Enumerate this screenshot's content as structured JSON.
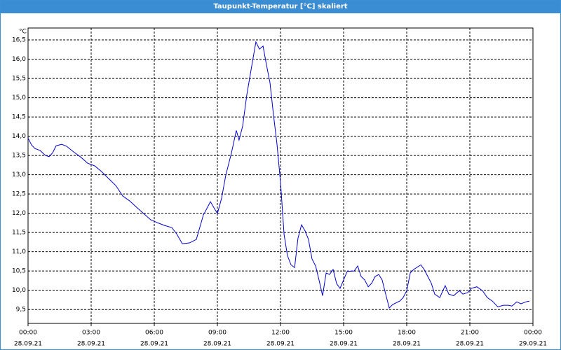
{
  "chart_data": {
    "type": "line",
    "title": "Taupunkt-Temperatur [°C] skaliert",
    "y_unit": "°C",
    "x": [
      0,
      0.17,
      0.33,
      0.57,
      0.83,
      1.0,
      1.17,
      1.33,
      1.6,
      1.83,
      2.17,
      2.5,
      2.83,
      3.17,
      3.5,
      3.83,
      4.17,
      4.5,
      4.83,
      5.17,
      5.5,
      5.83,
      6.17,
      6.5,
      6.83,
      7.07,
      7.33,
      7.67,
      8.0,
      8.33,
      8.67,
      9.0,
      9.2,
      9.4,
      9.67,
      9.9,
      10.03,
      10.2,
      10.4,
      10.6,
      10.83,
      11.0,
      11.17,
      11.33,
      11.5,
      11.67,
      11.83,
      12.0,
      12.17,
      12.33,
      12.5,
      12.67,
      12.83,
      13.0,
      13.17,
      13.33,
      13.5,
      13.67,
      13.83,
      14.0,
      14.17,
      14.33,
      14.5,
      14.67,
      14.83,
      15.0,
      15.17,
      15.5,
      15.67,
      15.83,
      16.0,
      16.17,
      16.33,
      16.5,
      16.67,
      16.83,
      17.0,
      17.17,
      17.33,
      17.67,
      17.83,
      18.0,
      18.17,
      18.33,
      18.67,
      18.83,
      19.0,
      19.17,
      19.33,
      19.57,
      19.83,
      20.0,
      20.23,
      20.5,
      20.67,
      20.9,
      21.07,
      21.33,
      21.6,
      21.83,
      22.07,
      22.33,
      22.6,
      22.83,
      23.0,
      23.23,
      23.43,
      23.67,
      23.83
    ],
    "series": [
      {
        "color": "#0000cc",
        "values": [
          13.95,
          13.77,
          13.68,
          13.63,
          13.5,
          13.47,
          13.57,
          13.75,
          13.79,
          13.74,
          13.59,
          13.46,
          13.3,
          13.23,
          13.08,
          12.9,
          12.72,
          12.45,
          12.32,
          12.15,
          11.99,
          11.83,
          11.75,
          11.68,
          11.63,
          11.46,
          11.21,
          11.23,
          11.32,
          11.95,
          12.3,
          11.99,
          12.39,
          12.99,
          13.57,
          14.15,
          13.9,
          14.26,
          15.08,
          15.72,
          16.45,
          16.26,
          16.34,
          15.86,
          15.39,
          14.54,
          13.81,
          12.81,
          11.45,
          10.9,
          10.66,
          10.59,
          11.35,
          11.7,
          11.54,
          11.32,
          10.81,
          10.63,
          10.27,
          9.86,
          10.45,
          10.41,
          10.54,
          10.17,
          10.05,
          10.27,
          10.49,
          10.5,
          10.63,
          10.36,
          10.27,
          10.09,
          10.18,
          10.36,
          10.41,
          10.27,
          9.9,
          9.54,
          9.63,
          9.72,
          9.81,
          9.99,
          10.45,
          10.54,
          10.66,
          10.54,
          10.36,
          10.18,
          9.9,
          9.81,
          10.12,
          9.9,
          9.86,
          9.99,
          9.9,
          9.94,
          10.05,
          10.09,
          9.99,
          9.81,
          9.72,
          9.57,
          9.61,
          9.61,
          9.59,
          9.7,
          9.65,
          9.7,
          9.72
        ]
      }
    ],
    "xlim": [
      0,
      24
    ],
    "xticks": [
      {
        "value": 0,
        "label": "00:00"
      },
      {
        "value": 3,
        "label": "03:00"
      },
      {
        "value": 6,
        "label": "06:00"
      },
      {
        "value": 9,
        "label": "09:00"
      },
      {
        "value": 12,
        "label": "12:00"
      },
      {
        "value": 15,
        "label": "15:00"
      },
      {
        "value": 18,
        "label": "18:00"
      },
      {
        "value": 21,
        "label": "21:00"
      },
      {
        "value": 24,
        "label": "00:00"
      }
    ],
    "xtick_dates": [
      "28.09.21",
      "28.09.21",
      "28.09.21",
      "28.09.21",
      "28.09.21",
      "28.09.21",
      "28.09.21",
      "28.09.21",
      "29.09.21"
    ],
    "ylim": [
      9.14,
      16.81
    ],
    "yticks": [
      {
        "value": 9.5,
        "label": "9,5"
      },
      {
        "value": 10,
        "label": "10,0"
      },
      {
        "value": 10.5,
        "label": "10,5"
      },
      {
        "value": 11,
        "label": "11,0"
      },
      {
        "value": 11.5,
        "label": "11,5"
      },
      {
        "value": 12,
        "label": "12,0"
      },
      {
        "value": 12.5,
        "label": "12,5"
      },
      {
        "value": 13,
        "label": "13,0"
      },
      {
        "value": 13.5,
        "label": "13,5"
      },
      {
        "value": 14,
        "label": "14,0"
      },
      {
        "value": 14.5,
        "label": "14,5"
      },
      {
        "value": 15,
        "label": "15,0"
      },
      {
        "value": 15.5,
        "label": "15,5"
      },
      {
        "value": 16,
        "label": "16,0"
      },
      {
        "value": 16.5,
        "label": "16,5"
      }
    ],
    "grid": true
  }
}
